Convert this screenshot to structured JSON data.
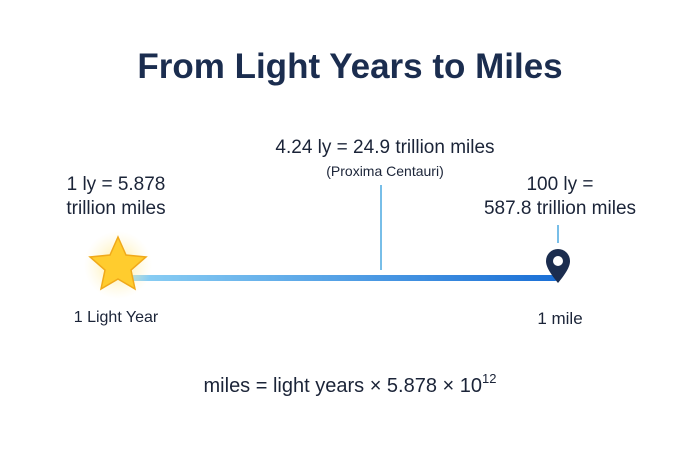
{
  "title": "From Light Years to Miles",
  "left": {
    "label_lines": [
      "1 ly = 5.878",
      "trillion miles"
    ],
    "caption": "1 Light Year"
  },
  "middle": {
    "label": "4.24 ly = 24.9 trillion miles",
    "sublabel": "(Proxima Centauri)"
  },
  "right": {
    "label_lines": [
      "100 ly =",
      "587.8 trillion miles"
    ],
    "caption": "1 mile"
  },
  "formula": {
    "text": "miles = light years × 5.878 × 10",
    "superscript": "12"
  }
}
